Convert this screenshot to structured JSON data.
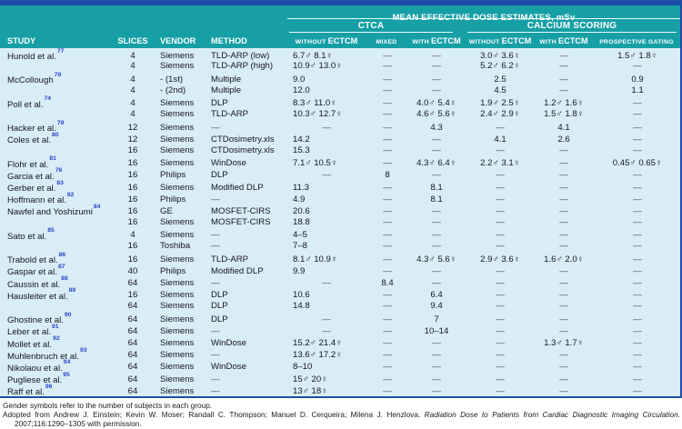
{
  "header": {
    "dose_title": "MEAN EFFECTIVE DOSE ESTIMATES, mSv",
    "groups": {
      "ctca": "CTCA",
      "calcium": "CALCIUM SCORING"
    },
    "columns": [
      {
        "label": "STUDY"
      },
      {
        "label": "SLICES"
      },
      {
        "label": "VENDOR"
      },
      {
        "label": "METHOD"
      },
      {
        "small": "WITHOUT",
        "big": "ECTCM"
      },
      {
        "small": "MIXED",
        "big": ""
      },
      {
        "small": "WITH",
        "big": "ECTCM"
      },
      {
        "small": "WITHOUT",
        "big": "ECTCM"
      },
      {
        "small": "WITH",
        "big": "ECTCM"
      },
      {
        "small": "PROSPECTIVE GATING",
        "big": ""
      }
    ]
  },
  "rows": [
    {
      "study": "Hunold et al.",
      "ref": "77",
      "slices": "4",
      "vendor": "Siemens",
      "method": "TLD-ARP (low)",
      "doses": [
        "6.7♂ 8.1♀",
        "—",
        "—",
        "3.0♂ 3.6♀",
        "—",
        "1.5♂ 1.8♀"
      ]
    },
    {
      "study": "",
      "ref": "",
      "slices": "4",
      "vendor": "Siemens",
      "method": "TLD-ARP (high)",
      "doses": [
        "10.9♂ 13.0♀",
        "—",
        "—",
        "5.2♂ 6.2♀",
        "—",
        "—"
      ]
    },
    {
      "study": "McCollough",
      "ref": "78",
      "slices": "4",
      "vendor": "- (1st)",
      "method": "Multiple",
      "doses": [
        "9.0",
        "—",
        "—",
        "2.5",
        "—",
        "0.9"
      ]
    },
    {
      "study": "",
      "ref": "",
      "slices": "4",
      "vendor": "- (2nd)",
      "method": "Multiple",
      "doses": [
        "12.0",
        "—",
        "—",
        "4.5",
        "—",
        "1.1"
      ]
    },
    {
      "study": "Poll et al.",
      "ref": "74",
      "slices": "4",
      "vendor": "Siemens",
      "method": "DLP",
      "doses": [
        "8.3♂ 11.0♀",
        "—",
        "4.0♂ 5.4♀",
        "1.9♂ 2.5♀",
        "1.2♂ 1.6♀",
        "—"
      ]
    },
    {
      "study": "",
      "ref": "",
      "slices": "4",
      "vendor": "Siemens",
      "method": "TLD-ARP",
      "doses": [
        "10.3♂ 12.7♀",
        "—",
        "4.6♂ 5.6♀",
        "2.4♂ 2.9♀",
        "1.5♂ 1.8♀",
        "—"
      ]
    },
    {
      "study": "Hacker et al.",
      "ref": "79",
      "slices": "12",
      "vendor": "Siemens",
      "method": "—",
      "doses": [
        "—",
        "—",
        "4.3",
        "—",
        "4.1",
        "—"
      ]
    },
    {
      "study": "Coles et al.",
      "ref": "80",
      "slices": "12",
      "vendor": "Siemens",
      "method": "CTDosimetry.xls",
      "doses": [
        "14.2",
        "—",
        "—",
        "4.1",
        "2.6",
        "—"
      ]
    },
    {
      "study": "",
      "ref": "",
      "slices": "16",
      "vendor": "Siemens",
      "method": "CTDosimetry.xls",
      "doses": [
        "15.3",
        "—",
        "—",
        "—",
        "—",
        "—"
      ]
    },
    {
      "study": "Flohr et al.",
      "ref": "81",
      "slices": "16",
      "vendor": "Siemens",
      "method": "WinDose",
      "doses": [
        "7.1♂ 10.5♀",
        "—",
        "4.3♂ 6.4♀",
        "2.2♂ 3.1♀",
        "—",
        "0.45♂ 0.65♀"
      ]
    },
    {
      "study": "Garcia et al.",
      "ref": "76",
      "slices": "16",
      "vendor": "Philips",
      "method": "DLP",
      "doses": [
        "—",
        "8",
        "—",
        "—",
        "—",
        "—"
      ]
    },
    {
      "study": "Gerber et al.",
      "ref": "83",
      "slices": "16",
      "vendor": "Siemens",
      "method": "Modified DLP",
      "doses": [
        "11.3",
        "—",
        "8.1",
        "—",
        "—",
        "—"
      ]
    },
    {
      "study": "Hoffmann et al.",
      "ref": "82",
      "slices": "16",
      "vendor": "Philips",
      "method": "—",
      "doses": [
        "4.9",
        "—",
        "8.1",
        "—",
        "—",
        "—"
      ]
    },
    {
      "study": "Nawfel and Yoshizumi",
      "ref": "84",
      "slices": "16",
      "vendor": "GE",
      "method": "MOSFET-CIRS",
      "doses": [
        "20.6",
        "—",
        "—",
        "—",
        "—",
        "—"
      ]
    },
    {
      "study": "",
      "ref": "",
      "slices": "16",
      "vendor": "Siemens",
      "method": "MOSFET-CIRS",
      "doses": [
        "18.8",
        "—",
        "—",
        "—",
        "—",
        "—"
      ]
    },
    {
      "study": "Sato et al.",
      "ref": "85",
      "slices": "4",
      "vendor": "Siemens",
      "method": "—",
      "doses": [
        "4–5",
        "—",
        "—",
        "—",
        "—",
        "—"
      ]
    },
    {
      "study": "",
      "ref": "",
      "slices": "16",
      "vendor": "Toshiba",
      "method": "—",
      "doses": [
        "7–8",
        "—",
        "—",
        "—",
        "—",
        "—"
      ]
    },
    {
      "study": "Trabold et al.",
      "ref": "86",
      "slices": "16",
      "vendor": "Siemens",
      "method": "TLD-ARP",
      "doses": [
        "8.1♂ 10.9♀",
        "—",
        "4.3♂ 5.6♀",
        "2.9♂ 3.6♀",
        "1.6♂ 2.0♀",
        "—"
      ]
    },
    {
      "study": "Gaspar et al.",
      "ref": "87",
      "slices": "40",
      "vendor": "Philips",
      "method": "Modified DLP",
      "doses": [
        "9.9",
        "—",
        "—",
        "—",
        "—",
        "—"
      ]
    },
    {
      "study": "Caussin et al.",
      "ref": "88",
      "slices": "64",
      "vendor": "Siemens",
      "method": "—",
      "doses": [
        "—",
        "8.4",
        "—",
        "—",
        "—",
        "—"
      ]
    },
    {
      "study": "Hausleiter et al.",
      "ref": "89",
      "slices": "16",
      "vendor": "Siemens",
      "method": "DLP",
      "doses": [
        "10.6",
        "—",
        "6.4",
        "—",
        "—",
        "—"
      ]
    },
    {
      "study": "",
      "ref": "",
      "slices": "64",
      "vendor": "Siemens",
      "method": "DLP",
      "doses": [
        "14.8",
        "—",
        "9.4",
        "—",
        "—",
        "—"
      ]
    },
    {
      "study": "Ghostine et al.",
      "ref": "90",
      "slices": "64",
      "vendor": "Siemens",
      "method": "DLP",
      "doses": [
        "—",
        "—",
        "7",
        "—",
        "—",
        "—"
      ]
    },
    {
      "study": "Leber et al.",
      "ref": "91",
      "slices": "64",
      "vendor": "Siemens",
      "method": "—",
      "doses": [
        "—",
        "—",
        "10–14",
        "—",
        "—",
        "—"
      ]
    },
    {
      "study": "Mollet et al.",
      "ref": "92",
      "slices": "64",
      "vendor": "Siemens",
      "method": "WinDose",
      "doses": [
        "15.2♂ 21.4♀",
        "—",
        "—",
        "—",
        "1.3♂ 1.7♀",
        "—"
      ]
    },
    {
      "study": "Muhlenbruch et al.",
      "ref": "93",
      "slices": "64",
      "vendor": "Siemens",
      "method": "—",
      "doses": [
        "13.6♂ 17.2♀",
        "—",
        "—",
        "—",
        "—",
        "—"
      ]
    },
    {
      "study": "Nikolaou et al.",
      "ref": "94",
      "slices": "64",
      "vendor": "Siemens",
      "method": "WinDose",
      "doses": [
        "8–10",
        "—",
        "—",
        "—",
        "—",
        "—"
      ]
    },
    {
      "study": "Pugliese et al.",
      "ref": "95",
      "slices": "64",
      "vendor": "Siemens",
      "method": "—",
      "doses": [
        "15♂ 20♀",
        "—",
        "—",
        "—",
        "—",
        "—"
      ]
    },
    {
      "study": "Raff et al.",
      "ref": "96",
      "slices": "64",
      "vendor": "Siemens",
      "method": "—",
      "doses": [
        "13♂ 18♀",
        "—",
        "—",
        "—",
        "—",
        "—"
      ]
    }
  ],
  "footer": {
    "gender_note": "Gender symbols refer to the number of subjects in each group.",
    "citation_plain": "Adopted from Andrew J. Einstein; Kevin W. Moser; Randall C. Thompson; Manuel D. Cerqueira; Milena J. Henzlova. ",
    "citation_italic": "Radiation Dose to Patients from Cardiac Diagnostic Imaging Circulation.",
    "citation_tail": " 2007;116:1290–1305 with permission."
  },
  "colors": {
    "navy": "#1d4da6",
    "teal": "#16a0a5",
    "body_bg": "#d9edf7",
    "ref_blue": "#2a46c8"
  }
}
